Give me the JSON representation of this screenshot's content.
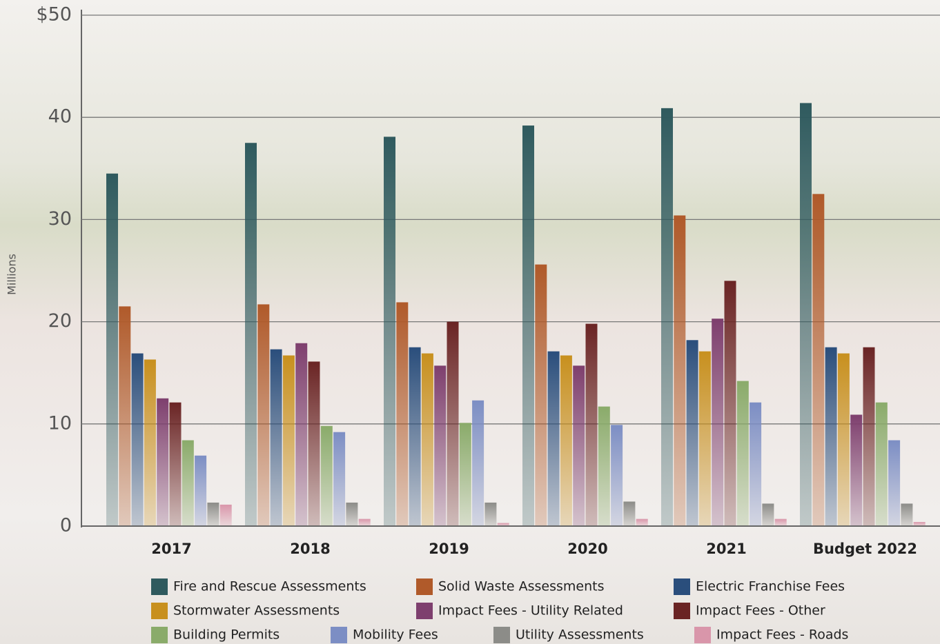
{
  "chart_data": {
    "type": "bar",
    "y_label": "Millions",
    "categories": [
      "2017",
      "2018",
      "2019",
      "2020",
      "2021",
      "Budget 2022"
    ],
    "ylim": [
      0,
      50
    ],
    "yticks": [
      0,
      10,
      20,
      30,
      40,
      {
        "value": 50,
        "label": "$50"
      }
    ],
    "grid": true,
    "series": [
      {
        "name": "Fire and Rescue Assessments",
        "color": "#2f5a5e",
        "values": [
          34.5,
          37.5,
          38.1,
          39.2,
          40.9,
          41.4
        ]
      },
      {
        "name": "Solid Waste Assessments",
        "color": "#b05a2a",
        "values": [
          21.5,
          21.7,
          21.9,
          25.6,
          30.4,
          32.5
        ]
      },
      {
        "name": "Electric Franchise Fees",
        "color": "#2a4e7c",
        "values": [
          16.9,
          17.3,
          17.5,
          17.1,
          18.2,
          17.5
        ]
      },
      {
        "name": "Stormwater Assessments",
        "color": "#c8901e",
        "values": [
          16.3,
          16.7,
          16.9,
          16.7,
          17.1,
          16.9
        ]
      },
      {
        "name": "Impact Fees - Utility Related",
        "color": "#7e3f6e",
        "values": [
          12.5,
          17.9,
          15.7,
          15.7,
          20.3,
          10.9
        ]
      },
      {
        "name": "Impact Fees - Other",
        "color": "#6a2424",
        "values": [
          12.1,
          16.1,
          20.0,
          19.8,
          24.0,
          17.5
        ]
      },
      {
        "name": "Building Permits",
        "color": "#8aab6a",
        "values": [
          8.4,
          9.8,
          10.1,
          11.7,
          14.2,
          12.1
        ]
      },
      {
        "name": "Mobility Fees",
        "color": "#7c8ec4",
        "values": [
          6.9,
          9.2,
          12.3,
          9.9,
          12.1,
          8.4
        ]
      },
      {
        "name": "Utility Assessments",
        "color": "#8c8c88",
        "values": [
          2.3,
          2.3,
          2.3,
          2.4,
          2.2,
          2.2
        ]
      },
      {
        "name": "Impact Fees - Roads",
        "color": "#d996aa",
        "values": [
          2.1,
          0.7,
          0.3,
          0.7,
          0.7,
          0.4
        ]
      }
    ]
  }
}
